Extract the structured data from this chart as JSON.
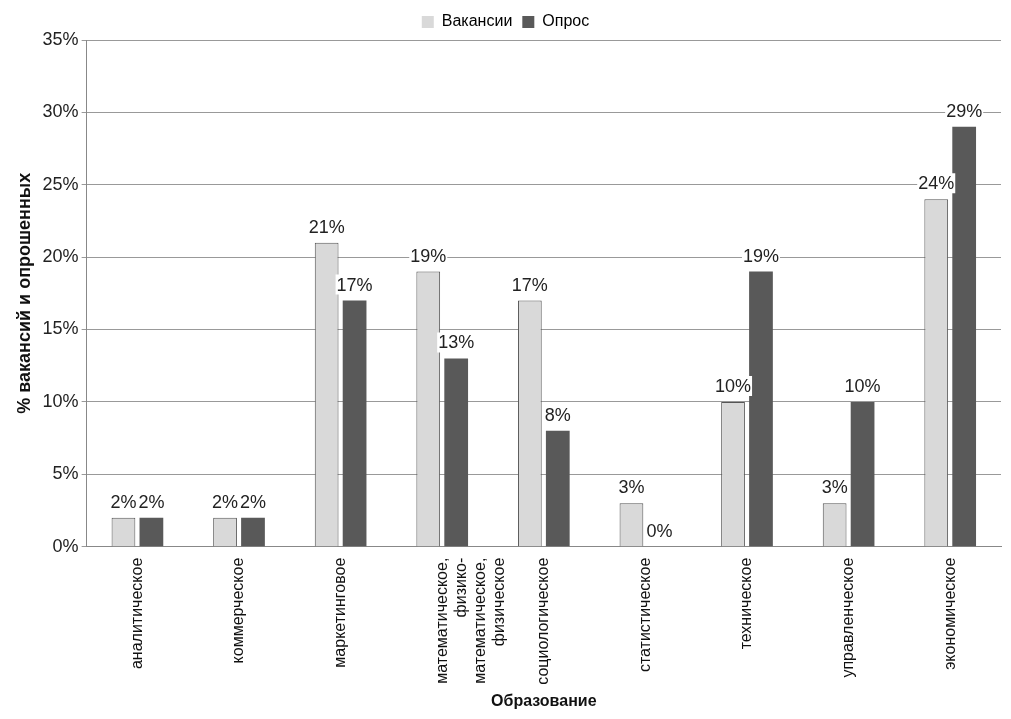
{
  "chart_data": {
    "type": "bar",
    "xlabel": "Образование",
    "ylabel": "% вакансий и опрошенных",
    "categories": [
      "аналитическое",
      "коммерческое",
      "маркетинговое",
      "математическое, физико-математическое, физическое",
      "социологическое",
      "статистическое",
      "техническое",
      "управленческое",
      "экономическое"
    ],
    "series": [
      {
        "name": "Вакансии",
        "color": "#d9d9d9",
        "values": [
          2,
          2,
          21,
          19,
          17,
          3,
          10,
          3,
          24
        ],
        "value_labels": [
          "2%",
          "2%",
          "21%",
          "19%",
          "17%",
          "3%",
          "10%",
          "3%",
          "24%"
        ]
      },
      {
        "name": "Опрос",
        "color": "#595959",
        "values": [
          2,
          2,
          17,
          13,
          8,
          0,
          19,
          10,
          29
        ],
        "value_labels": [
          "2%",
          "2%",
          "17%",
          "13%",
          "8%",
          "0%",
          "19%",
          "10%",
          "29%"
        ]
      }
    ],
    "ylim": [
      0,
      35
    ],
    "yticks": [
      {
        "value": 0,
        "label": "0%"
      },
      {
        "value": 5,
        "label": "5%"
      },
      {
        "value": 10,
        "label": "10%"
      },
      {
        "value": 15,
        "label": "15%"
      },
      {
        "value": 20,
        "label": "20%"
      },
      {
        "value": 25,
        "label": "25%"
      },
      {
        "value": 30,
        "label": "30%"
      },
      {
        "value": 35,
        "label": "35%"
      }
    ],
    "grid": "y",
    "legend": "top"
  }
}
